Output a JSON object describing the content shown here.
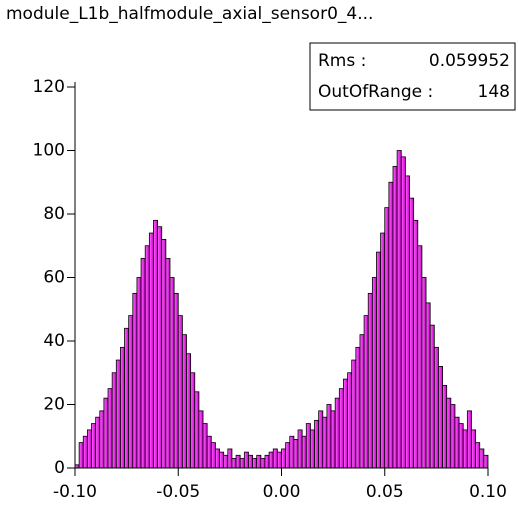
{
  "chart_data": {
    "type": "histogram",
    "title": "module_L1b_halfmodule_axial_sensor0_4...",
    "stats": [
      {
        "label": "Rms :",
        "value": 0.059952
      },
      {
        "label": "OutOfRange :",
        "value": 148
      }
    ],
    "color": "#ff00ff",
    "bins": [
      -0.1,
      -0.098,
      -0.096,
      -0.094,
      -0.092,
      -0.09,
      -0.088,
      -0.086,
      -0.084,
      -0.082,
      -0.08,
      -0.078,
      -0.076,
      -0.074,
      -0.072,
      -0.07,
      -0.068,
      -0.066,
      -0.064,
      -0.062,
      -0.06,
      -0.058,
      -0.056,
      -0.054,
      -0.052,
      -0.05,
      -0.048,
      -0.046,
      -0.044,
      -0.042,
      -0.04,
      -0.038,
      -0.036,
      -0.034,
      -0.032,
      -0.03,
      -0.028,
      -0.026,
      -0.024,
      -0.022,
      -0.02,
      -0.018,
      -0.016,
      -0.014,
      -0.012,
      -0.01,
      -0.008,
      -0.006,
      -0.004,
      -0.002,
      0,
      0.002,
      0.004,
      0.006,
      0.008,
      0.01,
      0.012,
      0.014,
      0.016,
      0.018,
      0.02,
      0.022,
      0.024,
      0.026,
      0.028,
      0.03,
      0.032,
      0.034,
      0.036,
      0.038,
      0.04,
      0.042,
      0.044,
      0.046,
      0.048,
      0.05,
      0.052,
      0.054,
      0.056,
      0.058,
      0.06,
      0.062,
      0.064,
      0.066,
      0.068,
      0.07,
      0.072,
      0.074,
      0.076,
      0.078,
      0.08,
      0.082,
      0.084,
      0.086,
      0.088,
      0.09,
      0.092,
      0.094,
      0.096,
      0.098,
      0.1
    ],
    "values": [
      1,
      8,
      10,
      12,
      14,
      16,
      18,
      22,
      25,
      30,
      34,
      38,
      44,
      48,
      55,
      60,
      66,
      70,
      74,
      78,
      76,
      72,
      66,
      60,
      55,
      48,
      42,
      36,
      30,
      24,
      18,
      14,
      10,
      8,
      6,
      5,
      4,
      6,
      3,
      4,
      3,
      5,
      4,
      3,
      4,
      3,
      4,
      5,
      6,
      5,
      6,
      8,
      10,
      9,
      12,
      10,
      14,
      12,
      15,
      18,
      16,
      20,
      18,
      22,
      25,
      28,
      30,
      34,
      38,
      42,
      48,
      55,
      60,
      68,
      74,
      82,
      90,
      95,
      100,
      98,
      92,
      85,
      78,
      70,
      60,
      52,
      45,
      38,
      32,
      26,
      22,
      20,
      16,
      14,
      12,
      18,
      12,
      8,
      6,
      4
    ],
    "xlim": [
      -0.1,
      0.1
    ],
    "xticks": [
      {
        "value": -0.1,
        "label": "-0.10"
      },
      {
        "value": -0.05,
        "label": "-0.05"
      },
      {
        "value": 0,
        "label": "0.00"
      },
      {
        "value": 0.05,
        "label": "0.05"
      },
      {
        "value": 0.1,
        "label": "0.10"
      }
    ],
    "ylim": [
      0,
      120
    ],
    "yticks": [
      0,
      20,
      40,
      60,
      80,
      100,
      120
    ]
  }
}
